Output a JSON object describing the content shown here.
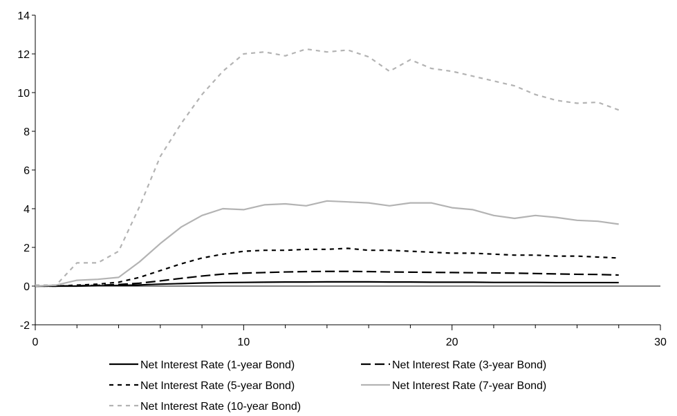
{
  "chart_data": {
    "type": "line",
    "title": "",
    "xlabel": "",
    "ylabel": "",
    "xlim": [
      0,
      30
    ],
    "ylim": [
      -2,
      14
    ],
    "xticks": [
      0,
      10,
      20,
      30
    ],
    "yticks": [
      -2,
      0,
      2,
      4,
      6,
      8,
      10,
      12,
      14
    ],
    "x_tick_labels": [
      "0",
      "10",
      "20",
      "30"
    ],
    "y_tick_labels": [
      "-2",
      "0",
      "2",
      "4",
      "6",
      "8",
      "10",
      "12",
      "14"
    ],
    "grid": false,
    "legend_position": "bottom",
    "x": [
      0,
      1,
      2,
      3,
      4,
      5,
      6,
      7,
      8,
      9,
      10,
      11,
      12,
      13,
      14,
      15,
      16,
      17,
      18,
      19,
      20,
      21,
      22,
      23,
      24,
      25,
      26,
      27,
      28
    ],
    "series": [
      {
        "name": "Net Interest Rate (1-year Bond)",
        "color": "#000000",
        "dash": "solid",
        "values": [
          0,
          0,
          0,
          0.02,
          0.03,
          0.06,
          0.1,
          0.13,
          0.16,
          0.18,
          0.19,
          0.2,
          0.21,
          0.21,
          0.22,
          0.22,
          0.22,
          0.21,
          0.21,
          0.2,
          0.2,
          0.2,
          0.19,
          0.19,
          0.19,
          0.18,
          0.18,
          0.18,
          0.18
        ]
      },
      {
        "name": "Net Interest Rate (3-year Bond)",
        "color": "#000000",
        "dash": "long-dash",
        "values": [
          0,
          0,
          0.02,
          0.04,
          0.08,
          0.15,
          0.27,
          0.4,
          0.52,
          0.62,
          0.67,
          0.7,
          0.73,
          0.75,
          0.76,
          0.76,
          0.75,
          0.73,
          0.72,
          0.71,
          0.7,
          0.69,
          0.68,
          0.67,
          0.65,
          0.63,
          0.61,
          0.6,
          0.57
        ]
      },
      {
        "name": "Net Interest Rate (5-year Bond)",
        "color": "#000000",
        "dash": "short-dash",
        "values": [
          0,
          0,
          0.05,
          0.1,
          0.2,
          0.45,
          0.8,
          1.15,
          1.45,
          1.65,
          1.8,
          1.85,
          1.85,
          1.9,
          1.9,
          1.95,
          1.85,
          1.85,
          1.8,
          1.75,
          1.7,
          1.7,
          1.65,
          1.6,
          1.6,
          1.55,
          1.55,
          1.5,
          1.45
        ]
      },
      {
        "name": "Net Interest Rate (7-year Bond)",
        "color": "#b3b3b3",
        "dash": "solid",
        "values": [
          0,
          0.05,
          0.3,
          0.35,
          0.45,
          1.25,
          2.2,
          3.05,
          3.65,
          4.0,
          3.95,
          4.2,
          4.25,
          4.15,
          4.4,
          4.35,
          4.3,
          4.15,
          4.3,
          4.3,
          4.05,
          3.95,
          3.65,
          3.5,
          3.65,
          3.55,
          3.4,
          3.35,
          3.2
        ]
      },
      {
        "name": "Net Interest Rate (10-year Bond)",
        "color": "#b3b3b3",
        "dash": "short-dash",
        "values": [
          0.05,
          0.05,
          1.2,
          1.2,
          1.8,
          4.1,
          6.7,
          8.4,
          9.9,
          11.1,
          12.0,
          12.1,
          11.9,
          12.25,
          12.1,
          12.2,
          11.85,
          11.1,
          11.7,
          11.25,
          11.1,
          10.85,
          10.6,
          10.35,
          9.9,
          9.6,
          9.45,
          9.5,
          9.1
        ]
      }
    ]
  }
}
